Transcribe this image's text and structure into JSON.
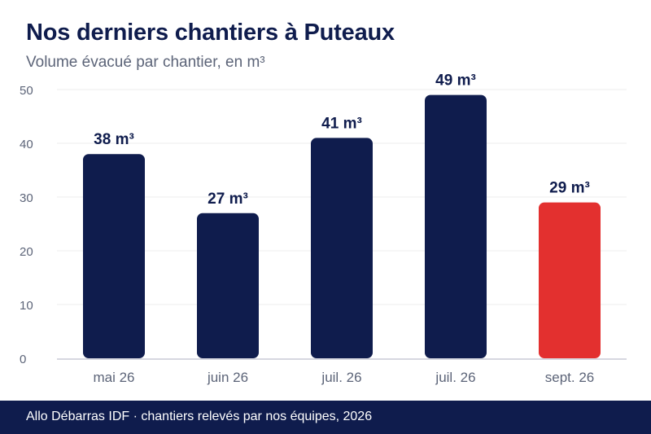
{
  "header": {
    "title": "Nos derniers chantiers à Puteaux",
    "subtitle": "Volume évacué par chantier, en m³"
  },
  "footer": {
    "text": "Allo Débarras IDF · chantiers relevés par nos équipes, 2026"
  },
  "colors": {
    "primary": "#0f1c4d",
    "highlight": "#e3302f",
    "grid": "#ececec",
    "tick_text": "#5c6478"
  },
  "chart_data": {
    "type": "bar",
    "title": "Nos derniers chantiers à Puteaux",
    "subtitle": "Volume évacué par chantier, en m³",
    "categories": [
      "mai 26",
      "juin 26",
      "juil. 26",
      "juil. 26",
      "sept. 26"
    ],
    "values": [
      38,
      27,
      41,
      49,
      29
    ],
    "data_labels": [
      "38 m³",
      "27 m³",
      "41 m³",
      "49 m³",
      "29 m³"
    ],
    "highlighted_index": 4,
    "ylim": [
      0,
      50
    ],
    "yticks": [
      0,
      10,
      20,
      30,
      40,
      50
    ],
    "grid": true,
    "legend": false
  }
}
